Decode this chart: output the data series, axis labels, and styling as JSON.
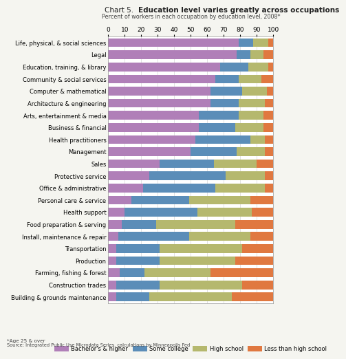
{
  "title_normal": "Chart 5.  ",
  "title_bold": "Education level varies greatly across occupations",
  "subtitle": "Percent of workers in each occupation by education level, 2008*",
  "footnote1": "*Age 25 & over",
  "footnote2": "Source: Integrated Public Use Microdata Series, calculations by Minneapolis Fed",
  "occupations": [
    "Life, physical, & social sciences",
    "Legal",
    "Education, training, & library",
    "Community & social services",
    "Computer & mathematical",
    "Architecture & engineering",
    "Arts, entertainment & media",
    "Business & financial",
    "Health practitioners",
    "Management",
    "Sales",
    "Protective service",
    "Office & administrative",
    "Personal care & service",
    "Health support",
    "Food preparation & serving",
    "Install, maintenance & repair",
    "Transportation",
    "Production",
    "Farming, fishing & forest",
    "Construction trades",
    "Building & grounds maintenance"
  ],
  "bachelors": [
    79,
    78,
    68,
    65,
    62,
    62,
    55,
    55,
    53,
    50,
    31,
    25,
    21,
    14,
    10,
    8,
    6,
    5,
    5,
    7,
    5,
    5
  ],
  "some_college": [
    9,
    8,
    17,
    14,
    19,
    17,
    24,
    22,
    33,
    28,
    33,
    46,
    44,
    35,
    44,
    21,
    43,
    26,
    26,
    15,
    26,
    20
  ],
  "high_school": [
    9,
    8,
    12,
    14,
    15,
    16,
    15,
    17,
    9,
    17,
    26,
    24,
    30,
    37,
    33,
    48,
    37,
    50,
    46,
    40,
    50,
    50
  ],
  "less_than_hs": [
    3,
    6,
    3,
    7,
    4,
    5,
    6,
    6,
    5,
    5,
    10,
    5,
    5,
    14,
    13,
    23,
    14,
    19,
    23,
    38,
    19,
    25
  ],
  "color_bachelors": "#b07fb8",
  "color_some_college": "#5b8db8",
  "color_high_school": "#b5b86e",
  "color_less_than_hs": "#e07840",
  "legend_labels": [
    "Bachelor's & higher",
    "Some college",
    "High school",
    "Less than high school"
  ],
  "xticks": [
    0,
    10,
    20,
    30,
    40,
    50,
    60,
    70,
    80,
    90,
    100
  ],
  "bg_color": "#f5f5f0"
}
